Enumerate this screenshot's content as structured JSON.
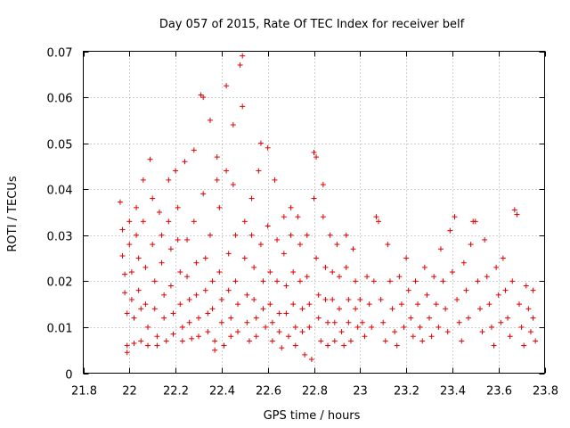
{
  "chart_data": {
    "type": "scatter",
    "title": "Day 057 of 2015, Rate Of TEC Index for receiver belf",
    "xlabel": "GPS time / hours",
    "ylabel": "ROTI / TECUs",
    "xlim": [
      21.8,
      23.8
    ],
    "ylim": [
      0,
      0.07
    ],
    "xticks": [
      "21.8",
      "22",
      "22.2",
      "22.4",
      "22.6",
      "22.8",
      "23",
      "23.2",
      "23.4",
      "23.6",
      "23.8"
    ],
    "yticks": [
      "0",
      "0.01",
      "0.02",
      "0.03",
      "0.04",
      "0.05",
      "0.06",
      "0.07"
    ],
    "grid": true,
    "marker": "+",
    "color": "#e00000",
    "series": [
      {
        "name": "ROTI",
        "points": [
          [
            21.96,
            0.0372
          ],
          [
            21.97,
            0.0312
          ],
          [
            21.97,
            0.0255
          ],
          [
            21.98,
            0.0215
          ],
          [
            21.98,
            0.0175
          ],
          [
            21.99,
            0.013
          ],
          [
            21.99,
            0.006
          ],
          [
            21.99,
            0.0045
          ],
          [
            22.0,
            0.033
          ],
          [
            22.0,
            0.028
          ],
          [
            22.01,
            0.022
          ],
          [
            22.01,
            0.016
          ],
          [
            22.02,
            0.012
          ],
          [
            22.02,
            0.0065
          ],
          [
            22.03,
            0.03
          ],
          [
            22.03,
            0.036
          ],
          [
            22.04,
            0.025
          ],
          [
            22.04,
            0.018
          ],
          [
            22.05,
            0.014
          ],
          [
            22.05,
            0.007
          ],
          [
            22.06,
            0.042
          ],
          [
            22.06,
            0.033
          ],
          [
            22.07,
            0.023
          ],
          [
            22.07,
            0.015
          ],
          [
            22.08,
            0.01
          ],
          [
            22.08,
            0.006
          ],
          [
            22.09,
            0.0465
          ],
          [
            22.1,
            0.038
          ],
          [
            22.1,
            0.028
          ],
          [
            22.11,
            0.02
          ],
          [
            22.11,
            0.014
          ],
          [
            22.12,
            0.008
          ],
          [
            22.12,
            0.006
          ],
          [
            22.13,
            0.035
          ],
          [
            22.14,
            0.03
          ],
          [
            22.14,
            0.024
          ],
          [
            22.15,
            0.017
          ],
          [
            22.15,
            0.012
          ],
          [
            22.16,
            0.007
          ],
          [
            22.17,
            0.042
          ],
          [
            22.17,
            0.033
          ],
          [
            22.18,
            0.027
          ],
          [
            22.18,
            0.019
          ],
          [
            22.19,
            0.013
          ],
          [
            22.19,
            0.0085
          ],
          [
            22.2,
            0.044
          ],
          [
            22.21,
            0.036
          ],
          [
            22.21,
            0.029
          ],
          [
            22.22,
            0.022
          ],
          [
            22.22,
            0.015
          ],
          [
            22.23,
            0.01
          ],
          [
            22.23,
            0.007
          ],
          [
            22.24,
            0.046
          ],
          [
            22.25,
            0.029
          ],
          [
            22.25,
            0.021
          ],
          [
            22.26,
            0.016
          ],
          [
            22.26,
            0.011
          ],
          [
            22.27,
            0.0075
          ],
          [
            22.28,
            0.0485
          ],
          [
            22.28,
            0.033
          ],
          [
            22.29,
            0.024
          ],
          [
            22.29,
            0.017
          ],
          [
            22.3,
            0.012
          ],
          [
            22.3,
            0.008
          ],
          [
            22.31,
            0.0605
          ],
          [
            22.32,
            0.06
          ],
          [
            22.32,
            0.039
          ],
          [
            22.33,
            0.025
          ],
          [
            22.33,
            0.018
          ],
          [
            22.34,
            0.013
          ],
          [
            22.34,
            0.009
          ],
          [
            22.35,
            0.055
          ],
          [
            22.35,
            0.03
          ],
          [
            22.36,
            0.02
          ],
          [
            22.36,
            0.014
          ],
          [
            22.37,
            0.007
          ],
          [
            22.37,
            0.005
          ],
          [
            22.38,
            0.047
          ],
          [
            22.38,
            0.042
          ],
          [
            22.39,
            0.036
          ],
          [
            22.39,
            0.022
          ],
          [
            22.4,
            0.016
          ],
          [
            22.4,
            0.011
          ],
          [
            22.41,
            0.006
          ],
          [
            22.42,
            0.0625
          ],
          [
            22.42,
            0.044
          ],
          [
            22.43,
            0.026
          ],
          [
            22.43,
            0.018
          ],
          [
            22.44,
            0.012
          ],
          [
            22.44,
            0.008
          ],
          [
            22.45,
            0.054
          ],
          [
            22.45,
            0.041
          ],
          [
            22.46,
            0.03
          ],
          [
            22.46,
            0.02
          ],
          [
            22.47,
            0.015
          ],
          [
            22.47,
            0.009
          ],
          [
            22.48,
            0.067
          ],
          [
            22.49,
            0.069
          ],
          [
            22.49,
            0.058
          ],
          [
            22.5,
            0.033
          ],
          [
            22.5,
            0.025
          ],
          [
            22.51,
            0.017
          ],
          [
            22.51,
            0.011
          ],
          [
            22.52,
            0.007
          ],
          [
            22.53,
            0.038
          ],
          [
            22.53,
            0.03
          ],
          [
            22.54,
            0.023
          ],
          [
            22.54,
            0.016
          ],
          [
            22.55,
            0.012
          ],
          [
            22.55,
            0.008
          ],
          [
            22.56,
            0.044
          ],
          [
            22.57,
            0.05
          ],
          [
            22.57,
            0.028
          ],
          [
            22.58,
            0.02
          ],
          [
            22.58,
            0.014
          ],
          [
            22.59,
            0.01
          ],
          [
            22.6,
            0.049
          ],
          [
            22.6,
            0.032
          ],
          [
            22.61,
            0.022
          ],
          [
            22.61,
            0.015
          ],
          [
            22.62,
            0.011
          ],
          [
            22.62,
            0.007
          ],
          [
            22.63,
            0.042
          ],
          [
            22.64,
            0.029
          ],
          [
            22.64,
            0.02
          ],
          [
            22.65,
            0.013
          ],
          [
            22.65,
            0.009
          ],
          [
            22.66,
            0.0055
          ],
          [
            22.67,
            0.034
          ],
          [
            22.67,
            0.026
          ],
          [
            22.68,
            0.019
          ],
          [
            22.68,
            0.013
          ],
          [
            22.69,
            0.008
          ],
          [
            22.7,
            0.036
          ],
          [
            22.7,
            0.03
          ],
          [
            22.71,
            0.022
          ],
          [
            22.71,
            0.015
          ],
          [
            22.72,
            0.01
          ],
          [
            22.72,
            0.006
          ],
          [
            22.73,
            0.034
          ],
          [
            22.74,
            0.028
          ],
          [
            22.74,
            0.02
          ],
          [
            22.75,
            0.014
          ],
          [
            22.75,
            0.009
          ],
          [
            22.76,
            0.004
          ],
          [
            22.77,
            0.03
          ],
          [
            22.77,
            0.021
          ],
          [
            22.78,
            0.015
          ],
          [
            22.78,
            0.01
          ],
          [
            22.79,
            0.003
          ],
          [
            22.8,
            0.038
          ],
          [
            22.8,
            0.048
          ],
          [
            22.81,
            0.047
          ],
          [
            22.81,
            0.025
          ],
          [
            22.82,
            0.017
          ],
          [
            22.82,
            0.012
          ],
          [
            22.83,
            0.007
          ],
          [
            22.84,
            0.041
          ],
          [
            22.84,
            0.034
          ],
          [
            22.85,
            0.023
          ],
          [
            22.85,
            0.016
          ],
          [
            22.86,
            0.011
          ],
          [
            22.86,
            0.006
          ],
          [
            22.87,
            0.03
          ],
          [
            22.88,
            0.022
          ],
          [
            22.88,
            0.016
          ],
          [
            22.89,
            0.011
          ],
          [
            22.89,
            0.007
          ],
          [
            22.9,
            0.028
          ],
          [
            22.91,
            0.021
          ],
          [
            22.91,
            0.014
          ],
          [
            22.92,
            0.009
          ],
          [
            22.93,
            0.006
          ],
          [
            22.94,
            0.03
          ],
          [
            22.94,
            0.023
          ],
          [
            22.95,
            0.016
          ],
          [
            22.95,
            0.011
          ],
          [
            22.96,
            0.007
          ],
          [
            22.97,
            0.027
          ],
          [
            22.98,
            0.02
          ],
          [
            22.98,
            0.014
          ],
          [
            22.99,
            0.01
          ],
          [
            23.0,
            0.016
          ],
          [
            23.01,
            0.011
          ],
          [
            23.02,
            0.008
          ],
          [
            23.03,
            0.021
          ],
          [
            23.04,
            0.015
          ],
          [
            23.05,
            0.01
          ],
          [
            23.06,
            0.02
          ],
          [
            23.07,
            0.034
          ],
          [
            23.08,
            0.033
          ],
          [
            23.09,
            0.016
          ],
          [
            23.1,
            0.011
          ],
          [
            23.11,
            0.007
          ],
          [
            23.12,
            0.028
          ],
          [
            23.13,
            0.02
          ],
          [
            23.14,
            0.014
          ],
          [
            23.15,
            0.009
          ],
          [
            23.16,
            0.006
          ],
          [
            23.17,
            0.021
          ],
          [
            23.18,
            0.015
          ],
          [
            23.19,
            0.01
          ],
          [
            23.2,
            0.025
          ],
          [
            23.21,
            0.018
          ],
          [
            23.22,
            0.012
          ],
          [
            23.23,
            0.008
          ],
          [
            23.24,
            0.02
          ],
          [
            23.25,
            0.015
          ],
          [
            23.26,
            0.01
          ],
          [
            23.27,
            0.007
          ],
          [
            23.28,
            0.023
          ],
          [
            23.29,
            0.017
          ],
          [
            23.3,
            0.012
          ],
          [
            23.31,
            0.008
          ],
          [
            23.32,
            0.021
          ],
          [
            23.33,
            0.015
          ],
          [
            23.34,
            0.01
          ],
          [
            23.35,
            0.027
          ],
          [
            23.36,
            0.02
          ],
          [
            23.37,
            0.014
          ],
          [
            23.38,
            0.009
          ],
          [
            23.39,
            0.031
          ],
          [
            23.4,
            0.022
          ],
          [
            23.41,
            0.034
          ],
          [
            23.42,
            0.016
          ],
          [
            23.43,
            0.011
          ],
          [
            23.44,
            0.007
          ],
          [
            23.45,
            0.024
          ],
          [
            23.46,
            0.018
          ],
          [
            23.47,
            0.012
          ],
          [
            23.48,
            0.028
          ],
          [
            23.49,
            0.033
          ],
          [
            23.5,
            0.033
          ],
          [
            23.51,
            0.02
          ],
          [
            23.52,
            0.014
          ],
          [
            23.53,
            0.009
          ],
          [
            23.54,
            0.029
          ],
          [
            23.55,
            0.021
          ],
          [
            23.56,
            0.015
          ],
          [
            23.57,
            0.01
          ],
          [
            23.58,
            0.006
          ],
          [
            23.59,
            0.023
          ],
          [
            23.6,
            0.017
          ],
          [
            23.61,
            0.011
          ],
          [
            23.62,
            0.025
          ],
          [
            23.63,
            0.018
          ],
          [
            23.64,
            0.012
          ],
          [
            23.65,
            0.008
          ],
          [
            23.66,
            0.02
          ],
          [
            23.67,
            0.0355
          ],
          [
            23.68,
            0.0345
          ],
          [
            23.69,
            0.015
          ],
          [
            23.7,
            0.01
          ],
          [
            23.71,
            0.006
          ],
          [
            23.72,
            0.019
          ],
          [
            23.73,
            0.014
          ],
          [
            23.74,
            0.009
          ],
          [
            23.75,
            0.018
          ],
          [
            23.75,
            0.012
          ],
          [
            23.76,
            0.007
          ]
        ]
      }
    ]
  }
}
